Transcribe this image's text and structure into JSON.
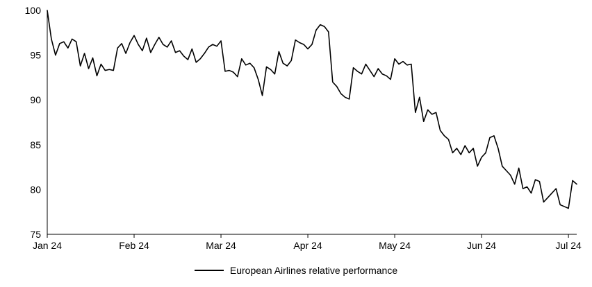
{
  "chart_data": {
    "type": "line",
    "title": "",
    "xlabel": "",
    "ylabel": "",
    "ylim": [
      75,
      100
    ],
    "grid": false,
    "line_color": "#000000",
    "axis_color": "#000000",
    "legend_position": "bottom-center",
    "y_ticks": [
      75,
      80,
      85,
      90,
      95,
      100
    ],
    "x_tick_labels": [
      "Jan 24",
      "Feb 24",
      "Mar 24",
      "Apr 24",
      "May 24",
      "Jun 24",
      "Jul 24"
    ],
    "x_tick_indices": [
      0,
      21,
      42,
      63,
      84,
      105,
      126
    ],
    "series": [
      {
        "name": "European Airlines relative performance",
        "values": [
          100,
          96.8,
          95.0,
          96.3,
          96.5,
          95.8,
          96.8,
          96.5,
          93.8,
          95.2,
          93.5,
          94.7,
          92.7,
          94.0,
          93.3,
          93.4,
          93.3,
          95.8,
          96.3,
          95.2,
          96.4,
          97.2,
          96.2,
          95.5,
          96.9,
          95.3,
          96.2,
          97.0,
          96.2,
          95.9,
          96.6,
          95.3,
          95.5,
          94.9,
          94.5,
          95.7,
          94.2,
          94.6,
          95.2,
          95.9,
          96.2,
          96.0,
          96.6,
          93.2,
          93.3,
          93.1,
          92.6,
          94.6,
          93.9,
          94.1,
          93.6,
          92.3,
          90.5,
          93.7,
          93.4,
          92.9,
          95.4,
          94.1,
          93.8,
          94.4,
          96.7,
          96.4,
          96.2,
          95.7,
          96.2,
          97.8,
          98.4,
          98.2,
          97.6,
          92.0,
          91.5,
          90.7,
          90.3,
          90.1,
          93.6,
          93.2,
          92.9,
          94.0,
          93.3,
          92.6,
          93.5,
          92.9,
          92.7,
          92.3,
          94.6,
          94.0,
          94.3,
          93.9,
          94.0,
          88.6,
          90.3,
          87.6,
          88.9,
          88.4,
          88.6,
          86.6,
          86.0,
          85.6,
          84.1,
          84.6,
          83.9,
          84.9,
          84.1,
          84.6,
          82.6,
          83.6,
          84.1,
          85.8,
          86.0,
          84.6,
          82.6,
          82.1,
          81.6,
          80.6,
          82.4,
          80.1,
          80.3,
          79.6,
          81.1,
          80.9,
          78.6,
          79.1,
          79.6,
          80.1,
          78.3,
          78.1,
          77.9,
          81.0,
          80.6
        ]
      }
    ]
  },
  "legend": {
    "label": "European Airlines relative performance"
  }
}
